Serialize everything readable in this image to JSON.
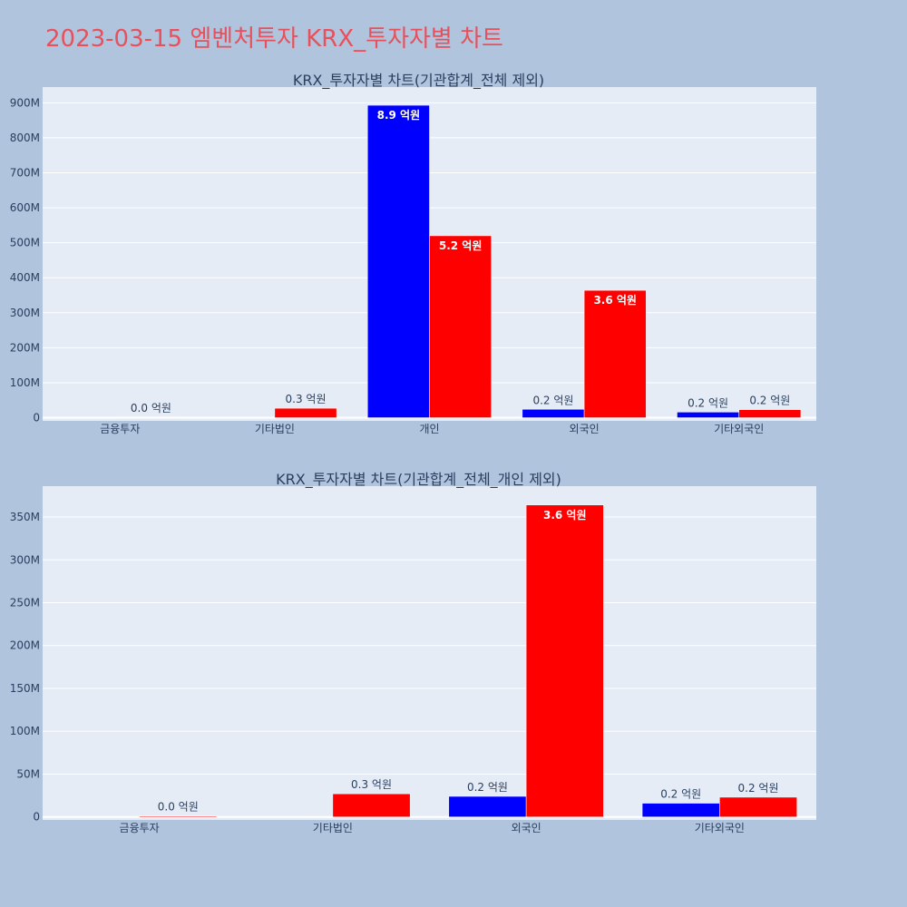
{
  "title": "2023-03-15 엠벤처투자 KRX_투자자별 차트",
  "colors": {
    "background": "#b0c4de",
    "plot_bg": "#e5ecf6",
    "title": "#e8505b",
    "blue": "#0000ff",
    "red": "#ff0000",
    "axis_text": "#2a3f5f"
  },
  "chart_data": [
    {
      "type": "bar",
      "title": "KRX_투자자별 차트(기관합계_전체 제외)",
      "categories": [
        "금융투자",
        "기타법인",
        "개인",
        "외국인",
        "기타외국인"
      ],
      "series": [
        {
          "color": "#0000ff",
          "values": [
            0,
            0,
            893000000,
            24000000,
            16000000
          ],
          "labels": [
            "",
            "",
            "8.9 억원",
            "0.2 억원",
            "0.2 억원"
          ]
        },
        {
          "color": "#ff0000",
          "values": [
            1000000,
            27000000,
            520000000,
            364000000,
            23000000
          ],
          "labels": [
            "0.0 억원",
            "0.3 억원",
            "5.2 억원",
            "3.6 억원",
            "0.2 억원"
          ]
        }
      ],
      "y_ticks": [
        0,
        100000000,
        200000000,
        300000000,
        400000000,
        500000000,
        600000000,
        700000000,
        800000000,
        900000000
      ],
      "y_tick_labels": [
        "0",
        "100M",
        "200M",
        "300M",
        "400M",
        "500M",
        "600M",
        "700M",
        "800M",
        "900M"
      ],
      "ylim": [
        -9000000,
        945000000
      ],
      "grid": true
    },
    {
      "type": "bar",
      "title": "KRX_투자자별 차트(기관합계_전체_개인 제외)",
      "categories": [
        "금융투자",
        "기타법인",
        "외국인",
        "기타외국인"
      ],
      "series": [
        {
          "color": "#0000ff",
          "values": [
            0,
            0,
            24000000,
            16000000
          ],
          "labels": [
            "",
            "",
            "0.2 억원",
            "0.2 억원"
          ]
        },
        {
          "color": "#ff0000",
          "values": [
            1000000,
            27000000,
            364000000,
            23000000
          ],
          "labels": [
            "0.0 억원",
            "0.3 억원",
            "3.6 억원",
            "0.2 억원"
          ]
        }
      ],
      "y_ticks": [
        0,
        50000000,
        100000000,
        150000000,
        200000000,
        250000000,
        300000000,
        350000000
      ],
      "y_tick_labels": [
        "0",
        "50M",
        "100M",
        "150M",
        "200M",
        "250M",
        "300M",
        "350M"
      ],
      "ylim": [
        -3500000,
        386000000
      ],
      "grid": true
    }
  ]
}
